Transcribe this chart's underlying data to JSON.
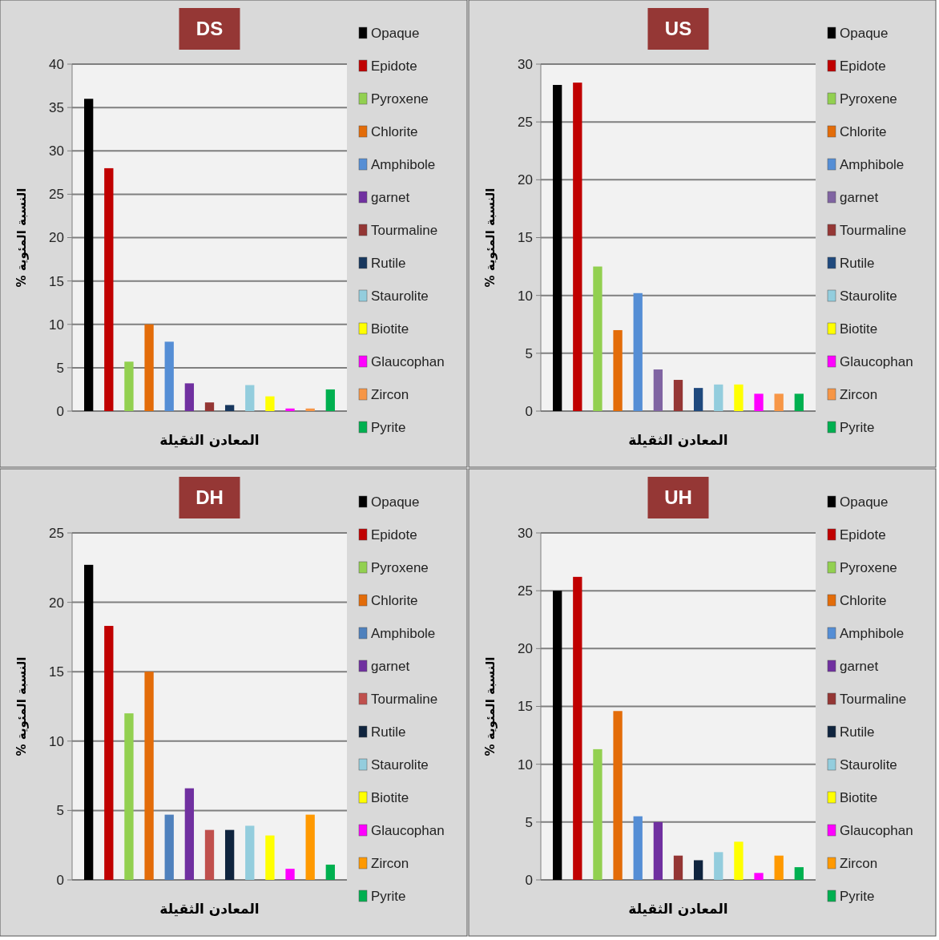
{
  "chart_data": [
    {
      "type": "bar",
      "title": "DS",
      "xlabel": "المعادن الثقيلة",
      "ylabel": "النسبة المئوية %",
      "categories": [
        null
      ],
      "ylim": [
        0,
        40
      ],
      "yticks": [
        0,
        5,
        10,
        15,
        20,
        25,
        30,
        35,
        40
      ],
      "grid": "y",
      "legend": "right",
      "series": [
        {
          "name": "Opaque",
          "color": "#000000",
          "values": [
            36
          ]
        },
        {
          "name": "Epidote",
          "color": "#c00000",
          "values": [
            28
          ]
        },
        {
          "name": "Pyroxene",
          "color": "#92d050",
          "values": [
            5.7
          ]
        },
        {
          "name": "Chlorite",
          "color": "#e36c09",
          "values": [
            10
          ]
        },
        {
          "name": "Amphibole",
          "color": "#558ed5",
          "values": [
            8
          ]
        },
        {
          "name": "garnet",
          "color": "#7030a0",
          "values": [
            3.2
          ]
        },
        {
          "name": "Tourmaline",
          "color": "#943634",
          "values": [
            1
          ]
        },
        {
          "name": "Rutile",
          "color": "#17375e",
          "values": [
            0.7
          ]
        },
        {
          "name": "Staurolite",
          "color": "#93cddd",
          "values": [
            3
          ]
        },
        {
          "name": "Biotite",
          "color": "#ffff00",
          "values": [
            1.7
          ]
        },
        {
          "name": "Glaucophan",
          "color": "#ff00ff",
          "values": [
            0.3
          ]
        },
        {
          "name": "Zircon",
          "color": "#f79646",
          "values": [
            0.3
          ]
        },
        {
          "name": "Pyrite",
          "color": "#00b050",
          "values": [
            2.5
          ]
        }
      ]
    },
    {
      "type": "bar",
      "title": "US",
      "xlabel": "المعادن الثقيلة",
      "ylabel": "النسبة المئوية %",
      "categories": [
        null
      ],
      "ylim": [
        0,
        30
      ],
      "yticks": [
        0,
        5,
        10,
        15,
        20,
        25,
        30
      ],
      "grid": "y",
      "legend": "right",
      "series": [
        {
          "name": "Opaque",
          "color": "#000000",
          "values": [
            28.2
          ]
        },
        {
          "name": "Epidote",
          "color": "#c00000",
          "values": [
            28.4
          ]
        },
        {
          "name": "Pyroxene",
          "color": "#92d050",
          "values": [
            12.5
          ]
        },
        {
          "name": "Chlorite",
          "color": "#e36c09",
          "values": [
            7
          ]
        },
        {
          "name": "Amphibole",
          "color": "#558ed5",
          "values": [
            10.2
          ]
        },
        {
          "name": "garnet",
          "color": "#8064a2",
          "values": [
            3.6
          ]
        },
        {
          "name": "Tourmaline",
          "color": "#953735",
          "values": [
            2.7
          ]
        },
        {
          "name": "Rutile",
          "color": "#1f497d",
          "values": [
            2
          ]
        },
        {
          "name": "Staurolite",
          "color": "#93cddd",
          "values": [
            2.3
          ]
        },
        {
          "name": "Biotite",
          "color": "#ffff00",
          "values": [
            2.3
          ]
        },
        {
          "name": "Glaucophan",
          "color": "#ff00ff",
          "values": [
            1.5
          ]
        },
        {
          "name": "Zircon",
          "color": "#f79646",
          "values": [
            1.5
          ]
        },
        {
          "name": "Pyrite",
          "color": "#00b050",
          "values": [
            1.5
          ]
        }
      ]
    },
    {
      "type": "bar",
      "title": "DH",
      "xlabel": "المعادن الثقيلة",
      "ylabel": "النسبة المئوية %",
      "categories": [
        null
      ],
      "ylim": [
        0,
        25
      ],
      "yticks": [
        0,
        5,
        10,
        15,
        20,
        25
      ],
      "grid": "y",
      "legend": "right",
      "series": [
        {
          "name": "Opaque",
          "color": "#000000",
          "values": [
            22.7
          ]
        },
        {
          "name": "Epidote",
          "color": "#c00000",
          "values": [
            18.3
          ]
        },
        {
          "name": "Pyroxene",
          "color": "#92d050",
          "values": [
            12
          ]
        },
        {
          "name": "Chlorite",
          "color": "#e36c09",
          "values": [
            15
          ]
        },
        {
          "name": "Amphibole",
          "color": "#4f81bd",
          "values": [
            4.7
          ]
        },
        {
          "name": "garnet",
          "color": "#7030a0",
          "values": [
            6.6
          ]
        },
        {
          "name": "Tourmaline",
          "color": "#c0504d",
          "values": [
            3.6
          ]
        },
        {
          "name": "Rutile",
          "color": "#0f243e",
          "values": [
            3.6
          ]
        },
        {
          "name": "Staurolite",
          "color": "#93cddd",
          "values": [
            3.9
          ]
        },
        {
          "name": "Biotite",
          "color": "#ffff00",
          "values": [
            3.2
          ]
        },
        {
          "name": "Glaucophan",
          "color": "#ff00ff",
          "values": [
            0.8
          ]
        },
        {
          "name": "Zircon",
          "color": "#ff9900",
          "values": [
            4.7
          ]
        },
        {
          "name": "Pyrite",
          "color": "#00b050",
          "values": [
            1.1
          ]
        }
      ]
    },
    {
      "type": "bar",
      "title": "UH",
      "xlabel": "المعادن الثقيلة",
      "ylabel": "النسبة المئوية %",
      "categories": [
        null
      ],
      "ylim": [
        0,
        30
      ],
      "yticks": [
        0,
        5,
        10,
        15,
        20,
        25,
        30
      ],
      "grid": "y",
      "legend": "right",
      "series": [
        {
          "name": "Opaque",
          "color": "#000000",
          "values": [
            25
          ]
        },
        {
          "name": "Epidote",
          "color": "#c00000",
          "values": [
            26.2
          ]
        },
        {
          "name": "Pyroxene",
          "color": "#92d050",
          "values": [
            11.3
          ]
        },
        {
          "name": "Chlorite",
          "color": "#e36c09",
          "values": [
            14.6
          ]
        },
        {
          "name": "Amphibole",
          "color": "#558ed5",
          "values": [
            5.5
          ]
        },
        {
          "name": "garnet",
          "color": "#7030a0",
          "values": [
            5
          ]
        },
        {
          "name": "Tourmaline",
          "color": "#943634",
          "values": [
            2.1
          ]
        },
        {
          "name": "Rutile",
          "color": "#0f243e",
          "values": [
            1.7
          ]
        },
        {
          "name": "Staurolite",
          "color": "#93cddd",
          "values": [
            2.4
          ]
        },
        {
          "name": "Biotite",
          "color": "#ffff00",
          "values": [
            3.3
          ]
        },
        {
          "name": "Glaucophan",
          "color": "#ff00ff",
          "values": [
            0.6
          ]
        },
        {
          "name": "Zircon",
          "color": "#ff9900",
          "values": [
            2.1
          ]
        },
        {
          "name": "Pyrite",
          "color": "#00b050",
          "values": [
            1.1
          ]
        }
      ]
    }
  ]
}
